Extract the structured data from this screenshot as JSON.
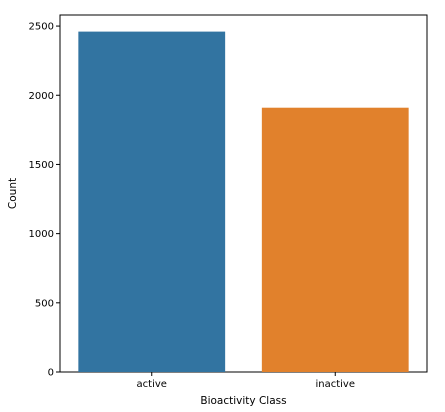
{
  "chart_data": {
    "type": "bar",
    "categories": [
      "active",
      "inactive"
    ],
    "values": [
      2460,
      1910
    ],
    "colors": [
      "#3274a1",
      "#e1812c"
    ],
    "title": "",
    "xlabel": "Bioactivity Class",
    "ylabel": "Count",
    "ylim": [
      0,
      2580
    ],
    "yticks": [
      "0",
      "500",
      "1000",
      "1500",
      "2000",
      "2500"
    ],
    "grid": false
  }
}
